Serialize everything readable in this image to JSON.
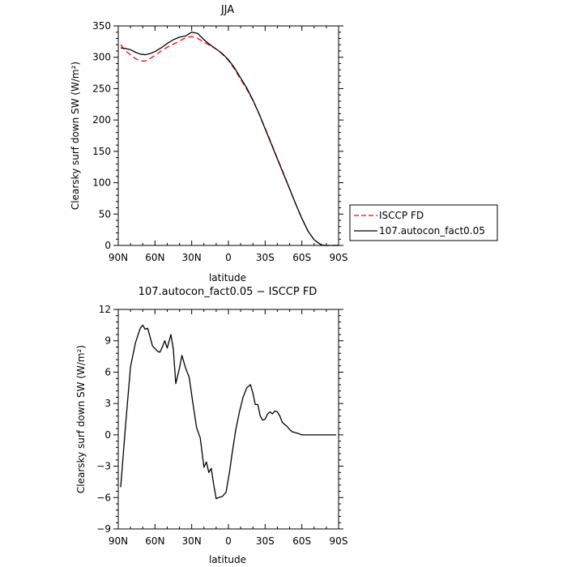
{
  "chart_data": [
    {
      "type": "line",
      "title": "JJA",
      "xlabel": "latitude",
      "ylabel": "Clearsky surf down SW (W/m²)",
      "xlim": [
        90,
        -90
      ],
      "ylim": [
        0,
        350
      ],
      "xticks": [
        90,
        60,
        30,
        0,
        -30,
        -60,
        -90
      ],
      "xtick_labels": [
        "90N",
        "60N",
        "30N",
        "0",
        "30S",
        "60S",
        "90S"
      ],
      "yticks": [
        0,
        50,
        100,
        150,
        200,
        250,
        300,
        350
      ],
      "ytick_labels": [
        "0",
        "50",
        "100",
        "150",
        "200",
        "250",
        "300",
        "350"
      ],
      "grid": false,
      "legend_position": "right-outside",
      "series": [
        {
          "name": "ISCCP FD",
          "color": "#ff0000",
          "dash": "dashed",
          "x": [
            88,
            84,
            80,
            76,
            72,
            68,
            64,
            60,
            55,
            50,
            45,
            40,
            35,
            30,
            25,
            20,
            15,
            10,
            5,
            0,
            -5,
            -10,
            -15,
            -20,
            -25,
            -30,
            -35,
            -40,
            -45,
            -50,
            -55,
            -60,
            -65,
            -70,
            -75,
            -78,
            -82,
            -86,
            -90
          ],
          "y": [
            320,
            310,
            304,
            298,
            294,
            294,
            298,
            303,
            310,
            316,
            321,
            326,
            331,
            333,
            330,
            324,
            319,
            313,
            305,
            295,
            281,
            265,
            249,
            231,
            210,
            187,
            163,
            139,
            115,
            90,
            66,
            43,
            23,
            9,
            2,
            0,
            0,
            0,
            0
          ]
        },
        {
          "name": "107.autocon_fact0.05",
          "color": "#000000",
          "dash": "solid",
          "x": [
            88,
            84,
            80,
            76,
            72,
            68,
            64,
            60,
            55,
            50,
            45,
            40,
            35,
            30,
            25,
            20,
            15,
            10,
            5,
            0,
            -5,
            -10,
            -15,
            -20,
            -25,
            -30,
            -35,
            -40,
            -45,
            -50,
            -55,
            -60,
            -65,
            -70,
            -75,
            -78,
            -82,
            -86,
            -90
          ],
          "y": [
            315,
            314,
            312,
            308,
            305,
            304,
            306,
            309,
            315,
            322,
            328,
            332,
            334,
            340,
            338,
            328,
            320,
            313,
            306,
            296,
            283,
            267,
            251,
            232,
            210,
            186,
            162,
            138,
            114,
            90,
            66,
            43,
            23,
            9,
            2,
            0,
            0,
            0,
            0
          ]
        }
      ]
    },
    {
      "type": "line",
      "title": "107.autocon_fact0.05 − ISCCP FD",
      "xlabel": "latitude",
      "ylabel": "Clearsky surf down SW (W/m²)",
      "xlim": [
        90,
        -90
      ],
      "ylim": [
        -9,
        12
      ],
      "xticks": [
        90,
        60,
        30,
        0,
        -30,
        -60,
        -90
      ],
      "xtick_labels": [
        "90N",
        "60N",
        "30N",
        "0",
        "30S",
        "60S",
        "90S"
      ],
      "yticks": [
        -9,
        -6,
        -3,
        0,
        3,
        6,
        9,
        12
      ],
      "ytick_labels": [
        "−9",
        "−6",
        "−3",
        "0",
        "3",
        "6",
        "9",
        "12"
      ],
      "grid": false,
      "series": [
        {
          "color": "#000000",
          "dash": "solid",
          "x": [
            88,
            84,
            80,
            76,
            72,
            70,
            68,
            66,
            62,
            58,
            56,
            54,
            52,
            50,
            47,
            45,
            43,
            40,
            38,
            35,
            32,
            29,
            26,
            23,
            20,
            18,
            16,
            14,
            12,
            10,
            8,
            5,
            2,
            -1,
            -3,
            -6,
            -9,
            -12,
            -15,
            -18,
            -20,
            -22,
            -24,
            -26,
            -28,
            -30,
            -32,
            -34,
            -36,
            -38,
            -40,
            -42,
            -44,
            -46,
            -48,
            -50,
            -52,
            -55,
            -58,
            -60,
            -62,
            -64,
            -66,
            -68,
            -70,
            -73,
            -76,
            -80,
            -84,
            -88
          ],
          "y": [
            -5,
            1,
            6.5,
            8.8,
            10.2,
            10.5,
            10.1,
            10.2,
            8.5,
            8.0,
            7.9,
            8.4,
            9.0,
            8.3,
            9.6,
            8.2,
            4.9,
            6.4,
            7.6,
            6.4,
            5.5,
            3.0,
            0.7,
            -0.3,
            -3.1,
            -2.6,
            -3.6,
            -3.2,
            -4.8,
            -6.1,
            -6.0,
            -5.9,
            -5.5,
            -3.5,
            -1.8,
            0.5,
            2.2,
            3.6,
            4.5,
            4.8,
            4.0,
            2.9,
            2.9,
            1.8,
            1.4,
            1.5,
            2.0,
            2.2,
            2.0,
            2.3,
            2.2,
            1.8,
            1.2,
            1.0,
            0.8,
            0.5,
            0.3,
            0.2,
            0.1,
            0.0,
            0.0,
            0.0,
            0.0,
            0.0,
            0.0,
            0.0,
            0.0,
            0.0,
            0.0,
            0.0
          ]
        }
      ]
    }
  ]
}
